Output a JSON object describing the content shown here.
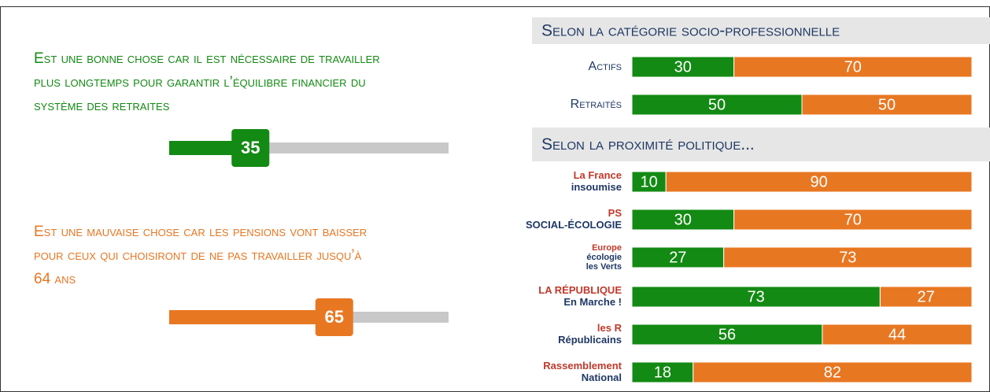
{
  "left": {
    "max": 100,
    "items": [
      {
        "lines": [
          "Est une bonne chose car il est nécessaire de travailler",
          "plus longtemps pour garantir l’équilibre financier du",
          "système des retraites"
        ],
        "value": 35,
        "color": "#138a13"
      },
      {
        "lines": [
          "Est une mauvaise chose car les pensions vont baisser",
          "pour ceux qui choisiront de ne pas travailler jusqu’à",
          "64 ans"
        ],
        "value": 65,
        "color": "#e87722"
      }
    ]
  },
  "right": {
    "colors": [
      "#138a13",
      "#e87722"
    ],
    "sections": [
      {
        "title": "Selon la catégorie socio-professionnelle",
        "rows": [
          {
            "label": [
              "Actifs"
            ],
            "values": [
              30,
              70
            ]
          },
          {
            "label": [
              "Retraités"
            ],
            "values": [
              50,
              50
            ]
          }
        ]
      },
      {
        "title": "Selon la proximité politique...",
        "rows": [
          {
            "label": [
              "La France",
              "insoumise"
            ],
            "values": [
              10,
              90
            ]
          },
          {
            "label": [
              "PS",
              "SOCIAL-ÉCOLOGIE"
            ],
            "values": [
              30,
              70
            ]
          },
          {
            "label": [
              "Europe",
              "écologie",
              "les Verts"
            ],
            "values": [
              27,
              73
            ]
          },
          {
            "label": [
              "LA RÉPUBLIQUE",
              "En Marche !"
            ],
            "values": [
              73,
              27
            ]
          },
          {
            "label": [
              "les R",
              "Républicains"
            ],
            "values": [
              56,
              44
            ]
          },
          {
            "label": [
              "Rassemblement",
              "National"
            ],
            "values": [
              18,
              82
            ]
          }
        ]
      }
    ]
  }
}
